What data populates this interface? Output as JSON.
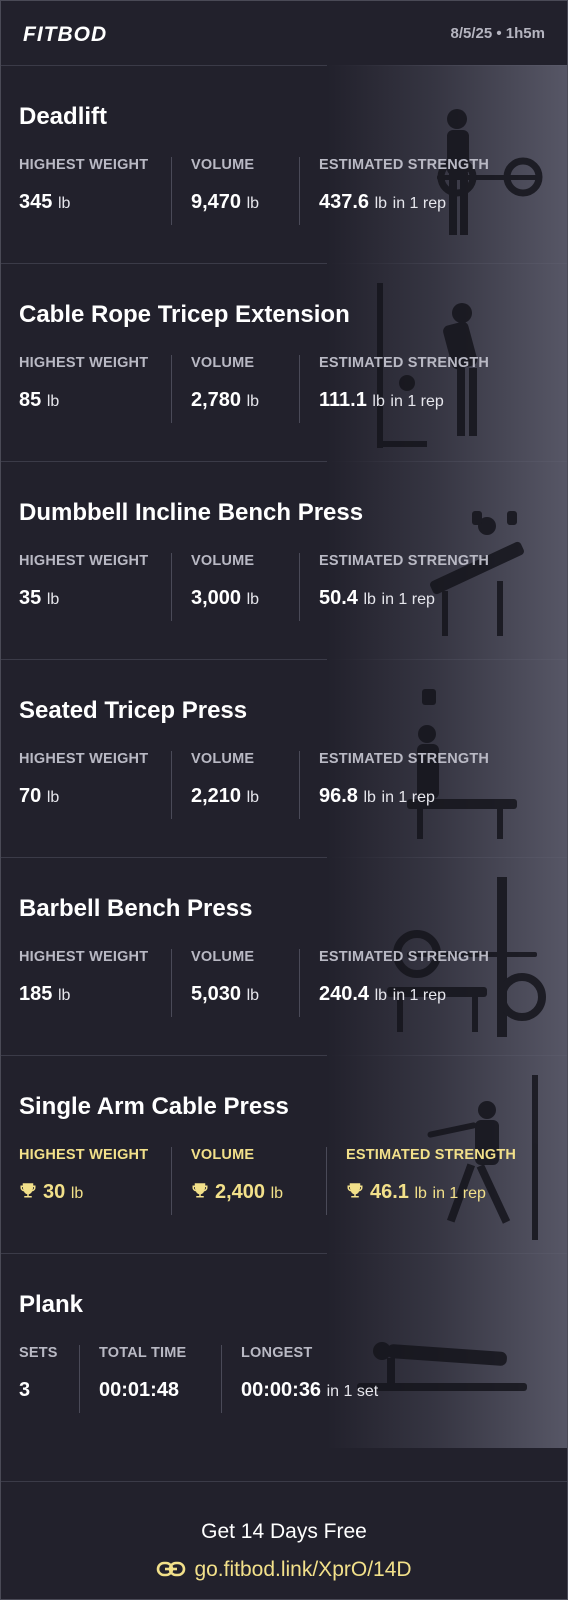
{
  "header": {
    "logo": "FITBOD",
    "session": "8/5/25 • 1h5m"
  },
  "exercises": [
    {
      "name": "Deadlift",
      "stats": [
        {
          "label": "HIGHEST WEIGHT",
          "value": "345",
          "unit": "lb"
        },
        {
          "label": "VOLUME",
          "value": "9,470",
          "unit": "lb"
        },
        {
          "label": "ESTIMATED STRENGTH",
          "value": "437.6",
          "unit": "lb",
          "suffix": "in 1 rep"
        }
      ]
    },
    {
      "name": "Cable Rope Tricep Extension",
      "stats": [
        {
          "label": "HIGHEST WEIGHT",
          "value": "85",
          "unit": "lb"
        },
        {
          "label": "VOLUME",
          "value": "2,780",
          "unit": "lb"
        },
        {
          "label": "ESTIMATED STRENGTH",
          "value": "111.1",
          "unit": "lb",
          "suffix": "in 1 rep"
        }
      ]
    },
    {
      "name": "Dumbbell Incline Bench Press",
      "stats": [
        {
          "label": "HIGHEST WEIGHT",
          "value": "35",
          "unit": "lb"
        },
        {
          "label": "VOLUME",
          "value": "3,000",
          "unit": "lb"
        },
        {
          "label": "ESTIMATED STRENGTH",
          "value": "50.4",
          "unit": "lb",
          "suffix": "in 1 rep"
        }
      ]
    },
    {
      "name": "Seated Tricep Press",
      "stats": [
        {
          "label": "HIGHEST WEIGHT",
          "value": "70",
          "unit": "lb"
        },
        {
          "label": "VOLUME",
          "value": "2,210",
          "unit": "lb"
        },
        {
          "label": "ESTIMATED STRENGTH",
          "value": "96.8",
          "unit": "lb",
          "suffix": "in 1 rep"
        }
      ]
    },
    {
      "name": "Barbell Bench Press",
      "stats": [
        {
          "label": "HIGHEST WEIGHT",
          "value": "185",
          "unit": "lb"
        },
        {
          "label": "VOLUME",
          "value": "5,030",
          "unit": "lb"
        },
        {
          "label": "ESTIMATED STRENGTH",
          "value": "240.4",
          "unit": "lb",
          "suffix": "in 1 rep"
        }
      ]
    },
    {
      "name": "Single Arm Cable Press",
      "personal_record": true,
      "stats": [
        {
          "label": "HIGHEST WEIGHT",
          "value": "30",
          "unit": "lb",
          "icon": "trophy-icon"
        },
        {
          "label": "VOLUME",
          "value": "2,400",
          "unit": "lb",
          "icon": "trophy-icon"
        },
        {
          "label": "ESTIMATED STRENGTH",
          "value": "46.1",
          "unit": "lb",
          "suffix": "in 1 rep",
          "icon": "trophy-icon"
        }
      ]
    },
    {
      "name": "Plank",
      "stats": [
        {
          "label": "SETS",
          "value": "3"
        },
        {
          "label": "TOTAL TIME",
          "value": "00:01:48"
        },
        {
          "label": "LONGEST",
          "value": "00:00:36",
          "suffix": "in 1 set"
        }
      ]
    }
  ],
  "footer": {
    "cta": "Get 14 Days Free",
    "link": "go.fitbod.link/XprO/14D",
    "link_icon": "link-icon"
  },
  "colors": {
    "background": "#22212c",
    "accent": "#f2e08a",
    "label": "#b9b9c4"
  }
}
